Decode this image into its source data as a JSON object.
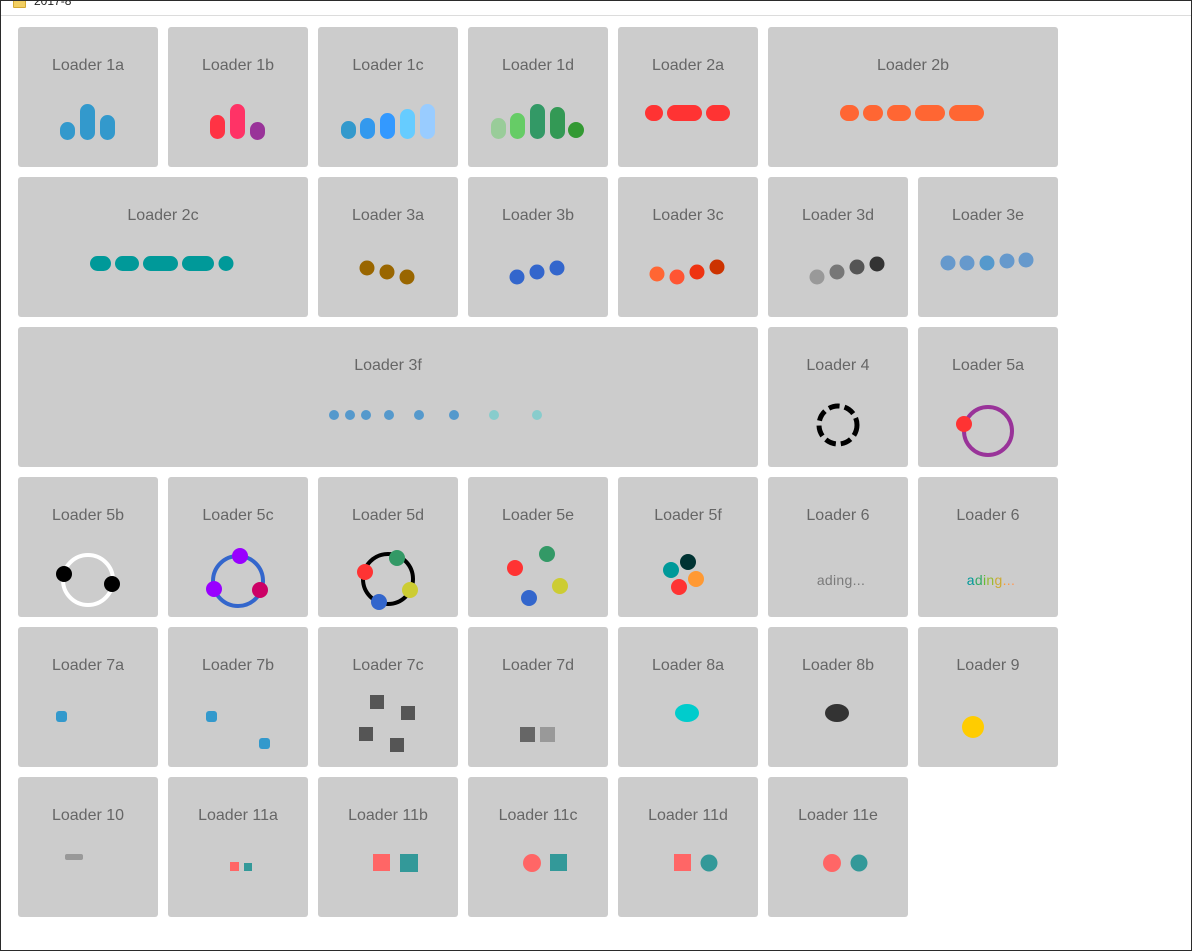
{
  "window": {
    "title": "2017-8"
  },
  "loaders": [
    {
      "id": "1a",
      "label": "Loader 1a"
    },
    {
      "id": "1b",
      "label": "Loader 1b"
    },
    {
      "id": "1c",
      "label": "Loader 1c"
    },
    {
      "id": "1d",
      "label": "Loader 1d"
    },
    {
      "id": "2a",
      "label": "Loader 2a"
    },
    {
      "id": "2b",
      "label": "Loader 2b"
    },
    {
      "id": "2c",
      "label": "Loader 2c"
    },
    {
      "id": "3a",
      "label": "Loader 3a"
    },
    {
      "id": "3b",
      "label": "Loader 3b"
    },
    {
      "id": "3c",
      "label": "Loader 3c"
    },
    {
      "id": "3d",
      "label": "Loader 3d"
    },
    {
      "id": "3e",
      "label": "Loader 3e"
    },
    {
      "id": "3f",
      "label": "Loader 3f"
    },
    {
      "id": "4",
      "label": "Loader 4"
    },
    {
      "id": "5a",
      "label": "Loader 5a"
    },
    {
      "id": "5b",
      "label": "Loader 5b"
    },
    {
      "id": "5c",
      "label": "Loader 5c"
    },
    {
      "id": "5d",
      "label": "Loader 5d"
    },
    {
      "id": "5e",
      "label": "Loader 5e"
    },
    {
      "id": "5f",
      "label": "Loader 5f"
    },
    {
      "id": "6a",
      "label": "Loader 6",
      "text": "ading..."
    },
    {
      "id": "6b",
      "label": "Loader 6",
      "text": "ading..."
    },
    {
      "id": "7a",
      "label": "Loader 7a"
    },
    {
      "id": "7b",
      "label": "Loader 7b"
    },
    {
      "id": "7c",
      "label": "Loader 7c"
    },
    {
      "id": "7d",
      "label": "Loader 7d"
    },
    {
      "id": "8a",
      "label": "Loader 8a"
    },
    {
      "id": "8b",
      "label": "Loader 8b"
    },
    {
      "id": "9",
      "label": "Loader 9"
    },
    {
      "id": "10",
      "label": "Loader 10"
    },
    {
      "id": "11a",
      "label": "Loader 11a"
    },
    {
      "id": "11b",
      "label": "Loader 11b"
    },
    {
      "id": "11c",
      "label": "Loader 11c"
    },
    {
      "id": "11d",
      "label": "Loader 11d"
    },
    {
      "id": "11e",
      "label": "Loader 11e"
    }
  ],
  "colors": {
    "card_bg": "#cccccc",
    "label": "#666666",
    "blue": "#3399cc",
    "red": "#ff3333",
    "orange": "#ff6633",
    "teal": "#009999",
    "brown": "#996600",
    "royal": "#3366cc",
    "purple": "#993399",
    "green": "#339966",
    "salmon": "#ff6666",
    "sea": "#339999"
  }
}
